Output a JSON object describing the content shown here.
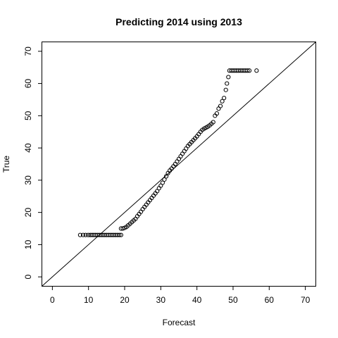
{
  "chart_data": {
    "type": "scatter",
    "title": "Predicting 2014 using 2013",
    "xlabel": "Forecast",
    "ylabel": "True",
    "xlim": [
      -2.8,
      72.8
    ],
    "ylim": [
      -2.8,
      72.8
    ],
    "x_ticks": [
      0,
      10,
      20,
      30,
      40,
      50,
      60,
      70
    ],
    "y_ticks": [
      0,
      10,
      20,
      30,
      40,
      50,
      60,
      70
    ],
    "reference_line": {
      "intercept": 0,
      "slope": 1
    },
    "marker": "open-circle",
    "grid": false,
    "series": [
      {
        "points": [
          [
            7.7,
            13
          ],
          [
            8.5,
            13
          ],
          [
            9.2,
            13
          ],
          [
            9.9,
            13
          ],
          [
            10.5,
            13
          ],
          [
            11.0,
            13
          ],
          [
            11.5,
            13
          ],
          [
            12.0,
            13
          ],
          [
            12.5,
            13
          ],
          [
            13.0,
            13
          ],
          [
            13.5,
            13
          ],
          [
            14.0,
            13
          ],
          [
            14.5,
            13
          ],
          [
            15.0,
            13
          ],
          [
            15.5,
            13
          ],
          [
            16.0,
            13
          ],
          [
            16.5,
            13
          ],
          [
            17.0,
            13
          ],
          [
            17.5,
            13
          ],
          [
            18.0,
            13
          ],
          [
            18.5,
            13
          ],
          [
            19.0,
            13
          ],
          [
            19.0,
            15
          ],
          [
            19.5,
            15
          ],
          [
            20.0,
            15.2
          ],
          [
            20.5,
            15.5
          ],
          [
            21.0,
            16
          ],
          [
            21.5,
            16.5
          ],
          [
            22.0,
            17
          ],
          [
            22.5,
            17.5
          ],
          [
            23.0,
            18
          ],
          [
            23.5,
            18.8
          ],
          [
            24.0,
            19.5
          ],
          [
            24.5,
            20.2
          ],
          [
            25.0,
            21
          ],
          [
            25.5,
            21.7
          ],
          [
            26.0,
            22.4
          ],
          [
            26.5,
            23.1
          ],
          [
            27.0,
            23.8
          ],
          [
            27.5,
            24.5
          ],
          [
            28.0,
            25.2
          ],
          [
            28.5,
            25.9
          ],
          [
            29.0,
            26.6
          ],
          [
            29.5,
            27.5
          ],
          [
            30.0,
            28.3
          ],
          [
            30.5,
            29.2
          ],
          [
            31.0,
            30.2
          ],
          [
            31.5,
            31.2
          ],
          [
            32.0,
            32.2
          ],
          [
            32.5,
            33.0
          ],
          [
            33.0,
            33.6
          ],
          [
            33.5,
            34.3
          ],
          [
            34.0,
            35.0
          ],
          [
            34.5,
            35.8
          ],
          [
            35.0,
            36.6
          ],
          [
            35.5,
            37.4
          ],
          [
            36.0,
            38.2
          ],
          [
            36.5,
            39.0
          ],
          [
            37.0,
            39.8
          ],
          [
            37.5,
            40.6
          ],
          [
            38.0,
            41.2
          ],
          [
            38.5,
            41.8
          ],
          [
            39.0,
            42.4
          ],
          [
            39.5,
            43.0
          ],
          [
            40.0,
            43.6
          ],
          [
            40.5,
            44.3
          ],
          [
            41.0,
            45.0
          ],
          [
            41.5,
            45.6
          ],
          [
            42.0,
            46.0
          ],
          [
            42.5,
            46.3
          ],
          [
            43.0,
            46.6
          ],
          [
            43.5,
            47.0
          ],
          [
            44.0,
            47.5
          ],
          [
            44.5,
            48.0
          ],
          [
            45.0,
            50.0
          ],
          [
            45.5,
            50.7
          ],
          [
            46.0,
            52.2
          ],
          [
            46.5,
            53.0
          ],
          [
            47.0,
            54.5
          ],
          [
            47.5,
            55.5
          ],
          [
            48.0,
            58.0
          ],
          [
            48.3,
            60.0
          ],
          [
            48.7,
            62.0
          ],
          [
            49.0,
            64
          ],
          [
            49.5,
            64
          ],
          [
            50.0,
            64
          ],
          [
            50.5,
            64
          ],
          [
            51.0,
            64
          ],
          [
            51.5,
            64
          ],
          [
            52.0,
            64
          ],
          [
            52.5,
            64
          ],
          [
            53.0,
            64
          ],
          [
            53.5,
            64
          ],
          [
            54.0,
            64
          ],
          [
            54.5,
            64
          ],
          [
            56.5,
            64
          ]
        ]
      }
    ]
  }
}
